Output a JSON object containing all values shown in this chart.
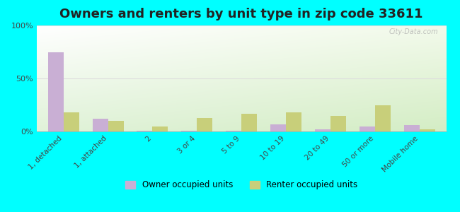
{
  "title": "Owners and renters by unit type in zip code 33611",
  "categories": [
    "1, detached",
    "1, attached",
    "2",
    "3 or 4",
    "5 to 9",
    "10 to 19",
    "20 to 49",
    "50 or more",
    "Mobile home"
  ],
  "owner_values": [
    75,
    12,
    1,
    1,
    0.5,
    7,
    2,
    5,
    6
  ],
  "renter_values": [
    18,
    10,
    5,
    13,
    17,
    18,
    15,
    25,
    2
  ],
  "owner_color": "#c9afd4",
  "renter_color": "#c8cf7a",
  "background_color": "#00ffff",
  "title_fontsize": 13,
  "ylim": [
    0,
    100
  ],
  "yticks": [
    0,
    50,
    100
  ],
  "ytick_labels": [
    "0%",
    "50%",
    "100%"
  ],
  "bar_width": 0.35,
  "legend_owner": "Owner occupied units",
  "legend_renter": "Renter occupied units",
  "watermark": "City-Data.com"
}
